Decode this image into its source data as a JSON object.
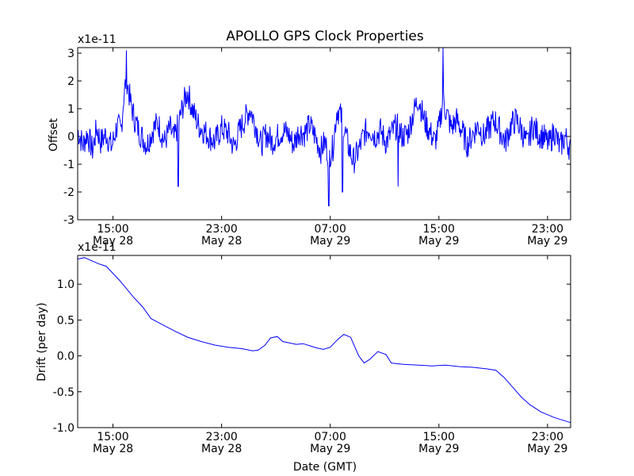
{
  "colors": {
    "series": "#0000ff",
    "axes": "#000000",
    "background": "#ffffff"
  },
  "figure": {
    "title": "APOLLO GPS Clock Properties",
    "xlabel": "Date (GMT)"
  },
  "chart_data": [
    {
      "type": "line",
      "name": "offset",
      "title": "APOLLO GPS Clock Properties",
      "ylabel": "Offset",
      "scale_label": "x1e-11",
      "ylim": [
        -3,
        3.2
      ],
      "xlim_hours": [
        11.9,
        48.2
      ],
      "xticks": [
        {
          "hour": 14.5,
          "time": "15:00",
          "date": "May 28"
        },
        {
          "hour": 22.5,
          "time": "23:00",
          "date": "May 28"
        },
        {
          "hour": 30.5,
          "time": "07:00",
          "date": "May 29"
        },
        {
          "hour": 38.5,
          "time": "15:00",
          "date": "May 29"
        },
        {
          "hour": 46.5,
          "time": "23:00",
          "date": "May 29"
        }
      ],
      "yticks": [
        "3",
        "2",
        "1",
        "0",
        "-1",
        "-2",
        "-3"
      ],
      "ytick_values": [
        3,
        2,
        1,
        0,
        -1,
        -2,
        -3
      ],
      "series": [
        {
          "name": "offset",
          "hours": [
            11.9,
            12.3,
            12.6,
            13.0,
            13.3,
            13.6,
            14.0,
            14.4,
            14.8,
            15.1,
            15.3,
            15.5,
            15.8,
            16.1,
            16.5,
            17.0,
            17.4,
            17.8,
            18.3,
            18.7,
            19.0,
            19.4,
            19.7,
            20.0,
            20.4,
            20.8,
            21.2,
            21.6,
            22.0,
            22.5,
            23.0,
            23.4,
            23.8,
            24.2,
            24.6,
            25.0,
            25.4,
            25.8,
            26.2,
            26.6,
            27.0,
            27.4,
            27.8,
            28.2,
            28.6,
            29.0,
            29.4,
            29.8,
            30.1,
            30.4,
            30.7,
            31.0,
            31.4,
            31.8,
            32.2,
            32.6,
            33.0,
            33.4,
            33.8,
            34.2,
            34.6,
            35.0,
            35.4,
            35.8,
            36.2,
            36.6,
            37.0,
            37.4,
            37.8,
            38.2,
            38.5,
            38.8,
            39.1,
            39.4,
            39.8,
            40.2,
            40.6,
            41.0,
            41.4,
            41.8,
            42.2,
            42.6,
            43.0,
            43.4,
            43.8,
            44.2,
            44.6,
            45.0,
            45.4,
            45.8,
            46.2,
            46.6,
            47.0,
            47.4,
            47.8,
            48.2
          ],
          "values": [
            0.2,
            -0.3,
            0.1,
            -0.5,
            0.3,
            -0.2,
            0.1,
            -0.4,
            0.4,
            0.2,
            1.5,
            2.1,
            1.2,
            0.6,
            0.1,
            -0.3,
            0.2,
            0.5,
            -0.2,
            0.3,
            -0.1,
            0.6,
            1.2,
            1.6,
            0.9,
            0.4,
            0.2,
            0.0,
            -0.2,
            0.3,
            0.1,
            -0.4,
            0.2,
            0.6,
            1.0,
            0.4,
            -0.3,
            0.1,
            -0.2,
            0.0,
            0.2,
            0.1,
            -0.3,
            0.2,
            0.1,
            0.4,
            0.0,
            -0.5,
            -0.2,
            -0.7,
            -0.4,
            1.0,
            0.6,
            -0.3,
            -0.9,
            -0.5,
            0.1,
            0.3,
            0.0,
            0.2,
            -0.2,
            0.1,
            0.4,
            0.0,
            0.1,
            0.8,
            1.4,
            0.6,
            0.2,
            -0.2,
            0.3,
            1.3,
            0.8,
            0.3,
            0.6,
            0.2,
            -0.3,
            0.1,
            0.4,
            0.0,
            0.3,
            0.6,
            0.2,
            -0.2,
            0.4,
            0.6,
            0.2,
            -0.3,
            0.4,
            0.1,
            0.0,
            -0.3,
            0.2,
            -0.4,
            0.0,
            -0.5
          ],
          "spikes": [
            {
              "hour": 15.5,
              "value": 3.1
            },
            {
              "hour": 19.3,
              "value": -1.8
            },
            {
              "hour": 30.4,
              "value": -2.5
            },
            {
              "hour": 31.4,
              "value": -2.0
            },
            {
              "hour": 38.8,
              "value": 3.2
            },
            {
              "hour": 35.5,
              "value": -1.8
            }
          ]
        }
      ]
    },
    {
      "type": "line",
      "name": "drift",
      "ylabel": "Drift (per day)",
      "scale_label": "x1e-11",
      "ylim": [
        -1.0,
        1.4
      ],
      "xlim_hours": [
        11.9,
        48.2
      ],
      "xticks": [
        {
          "hour": 14.5,
          "time": "15:00",
          "date": "May 28"
        },
        {
          "hour": 22.5,
          "time": "23:00",
          "date": "May 28"
        },
        {
          "hour": 30.5,
          "time": "07:00",
          "date": "May 29"
        },
        {
          "hour": 38.5,
          "time": "15:00",
          "date": "May 29"
        },
        {
          "hour": 46.5,
          "time": "23:00",
          "date": "May 29"
        }
      ],
      "yticks": [
        "1.0",
        "0.5",
        "0.0",
        "-0.5",
        "-1.0"
      ],
      "ytick_values": [
        1.0,
        0.5,
        0.0,
        -0.5,
        -1.0
      ],
      "series": [
        {
          "name": "drift",
          "hours": [
            11.9,
            12.4,
            13.0,
            13.5,
            14.0,
            15.0,
            16.0,
            16.7,
            17.3,
            18.0,
            19.0,
            20.0,
            21.0,
            22.0,
            23.0,
            24.0,
            24.8,
            25.2,
            25.7,
            26.1,
            26.6,
            27.0,
            27.5,
            28.0,
            28.5,
            29.0,
            29.5,
            30.0,
            30.5,
            31.0,
            31.5,
            32.0,
            32.6,
            33.0,
            33.4,
            34.0,
            34.6,
            35.0,
            36.0,
            37.0,
            38.0,
            39.0,
            40.0,
            41.0,
            42.0,
            42.7,
            43.3,
            44.0,
            44.6,
            45.2,
            46.0,
            47.0,
            48.2
          ],
          "values": [
            1.35,
            1.37,
            1.32,
            1.28,
            1.25,
            1.05,
            0.82,
            0.68,
            0.52,
            0.45,
            0.35,
            0.26,
            0.2,
            0.15,
            0.12,
            0.1,
            0.07,
            0.08,
            0.15,
            0.25,
            0.27,
            0.2,
            0.18,
            0.16,
            0.17,
            0.14,
            0.11,
            0.09,
            0.12,
            0.22,
            0.3,
            0.26,
            0.0,
            -0.1,
            -0.05,
            0.06,
            0.02,
            -0.1,
            -0.12,
            -0.13,
            -0.14,
            -0.13,
            -0.15,
            -0.16,
            -0.18,
            -0.2,
            -0.3,
            -0.45,
            -0.58,
            -0.68,
            -0.78,
            -0.86,
            -0.93
          ]
        }
      ]
    }
  ]
}
